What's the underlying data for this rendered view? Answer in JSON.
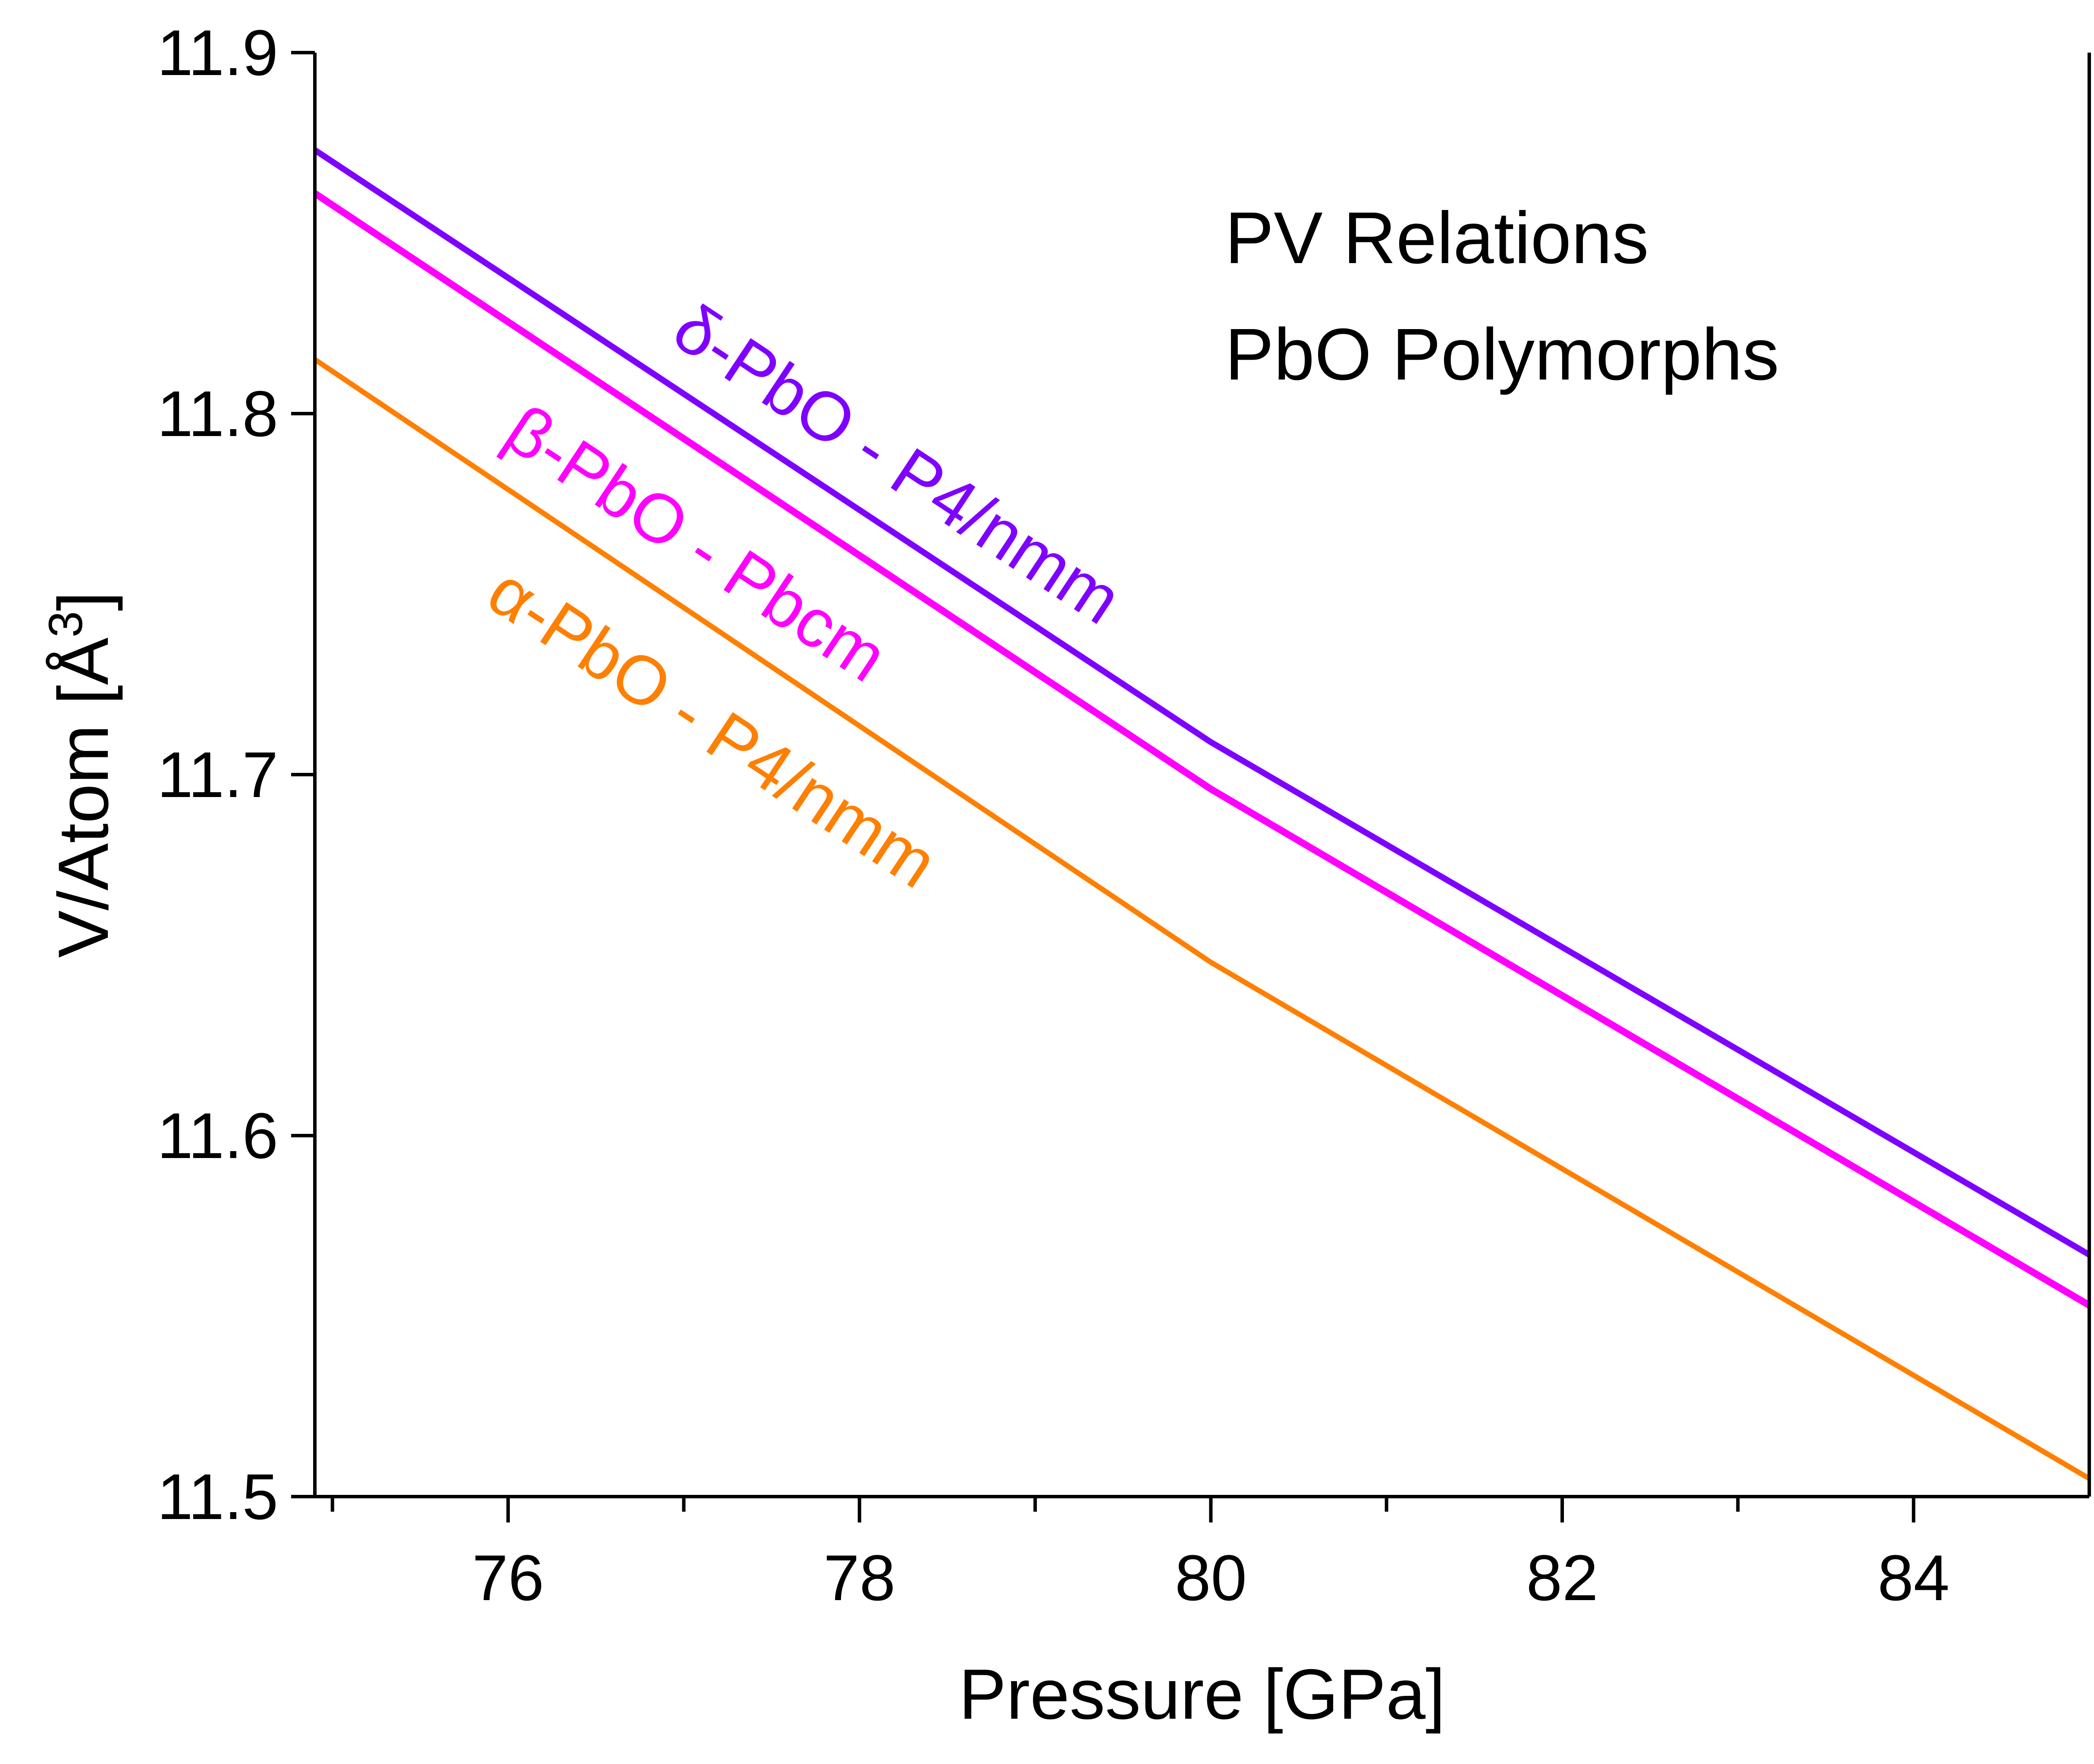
{
  "chart_data": {
    "type": "line",
    "title": "",
    "xlabel": "Pressure [GPa]",
    "ylabel_main": "V/Atom [Å",
    "ylabel_sup": "3",
    "ylabel_close": "]",
    "xlim": [
      74.9,
      85.0
    ],
    "ylim": [
      11.5,
      11.9
    ],
    "xticks_major": [
      76,
      78,
      80,
      82,
      84
    ],
    "xticks_major_labels": [
      "76",
      "78",
      "80",
      "82",
      "84"
    ],
    "xticks_minor": [
      75,
      77,
      79,
      81,
      83
    ],
    "yticks": [
      11.5,
      11.6,
      11.7,
      11.8,
      11.9
    ],
    "yticks_labels": [
      "11.5",
      "11.6",
      "11.7",
      "11.8",
      "11.9"
    ],
    "grid": false,
    "annotations": [
      "PV Relations",
      "PbO Polymorphs"
    ],
    "series": [
      {
        "name": "δ-PbO - P4/nmm",
        "color": "#7f00ff",
        "x": [
          74.9,
          80.0,
          85.0
        ],
        "y": [
          11.873,
          11.709,
          11.567
        ]
      },
      {
        "name": "β-PbO - Pbcm",
        "color": "#ff00ff",
        "x": [
          74.9,
          80.0,
          85.0
        ],
        "y": [
          11.861,
          11.696,
          11.553
        ]
      },
      {
        "name": "α-PbO - P4/nmm",
        "color": "#ff7f00",
        "x": [
          74.9,
          80.0,
          85.0
        ],
        "y": [
          11.815,
          11.648,
          11.505
        ]
      }
    ]
  }
}
